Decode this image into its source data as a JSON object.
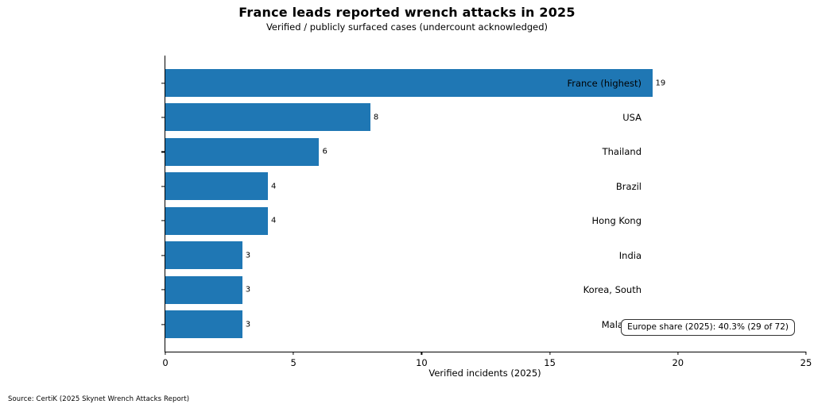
{
  "chart_data": {
    "type": "bar",
    "orientation": "horizontal",
    "title": "France leads reported wrench attacks in 2025",
    "subtitle": "Verified / publicly surfaced cases (undercount acknowledged)",
    "xlabel": "Verified incidents (2025)",
    "ylabel": "",
    "categories": [
      "France (highest)",
      "USA",
      "Thailand",
      "Brazil",
      "Hong Kong",
      "India",
      "Korea, South",
      "Malaysia"
    ],
    "values": [
      19,
      8,
      6,
      4,
      4,
      3,
      3,
      3
    ],
    "xlim": [
      0,
      25
    ],
    "xticks": [
      0,
      5,
      10,
      15,
      20,
      25
    ],
    "bar_color": "#1f77b4",
    "grid": false,
    "legend": false,
    "value_labels_shown": true,
    "annotation": "Europe share (2025): 40.3% (29 of 72)"
  },
  "footer": {
    "source": "Source: CertiK (2025 Skynet Wrench Attacks Report)"
  }
}
